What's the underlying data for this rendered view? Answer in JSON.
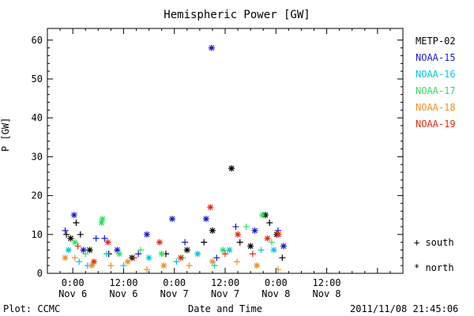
{
  "chart_data": {
    "type": "scatter",
    "title": "Hemispheric Power [GW]",
    "ylabel": "P [GW]",
    "xlabel": "Date and Time",
    "ylim": [
      0,
      63
    ],
    "xlim_hours": [
      -6,
      78
    ],
    "y_ticks": [
      0,
      10,
      20,
      30,
      40,
      50,
      60
    ],
    "x_ticks": [
      {
        "hour": 0,
        "time": "0:00",
        "date": "Nov 6"
      },
      {
        "hour": 12,
        "time": "12:00",
        "date": "Nov 6"
      },
      {
        "hour": 24,
        "time": "0:00",
        "date": "Nov 7"
      },
      {
        "hour": 36,
        "time": "12:00",
        "date": "Nov 7"
      },
      {
        "hour": 48,
        "time": "0:00",
        "date": "Nov 8"
      },
      {
        "hour": 60,
        "time": "12:00",
        "date": "Nov 8"
      }
    ],
    "grid": false,
    "legend_position": "right",
    "marker_key": {
      "south": "+ south",
      "north": "* north"
    },
    "series": [
      {
        "name": "METP-02",
        "color": "#000000",
        "points": [
          {
            "h": -1.5,
            "v": 10,
            "m": "+"
          },
          {
            "h": -0.5,
            "v": 9,
            "m": "*"
          },
          {
            "h": 0.8,
            "v": 13,
            "m": "+"
          },
          {
            "h": 1.8,
            "v": 10,
            "m": "+"
          },
          {
            "h": 4,
            "v": 6,
            "m": "*"
          },
          {
            "h": 8.5,
            "v": 5,
            "m": "+"
          },
          {
            "h": 14,
            "v": 4,
            "m": "*"
          },
          {
            "h": 22,
            "v": 5,
            "m": "+"
          },
          {
            "h": 27,
            "v": 6,
            "m": "*"
          },
          {
            "h": 31,
            "v": 8,
            "m": "+"
          },
          {
            "h": 33,
            "v": 11,
            "m": "*"
          },
          {
            "h": 37.5,
            "v": 27,
            "m": "*"
          },
          {
            "h": 39.5,
            "v": 8,
            "m": "+"
          },
          {
            "h": 42,
            "v": 7,
            "m": "*"
          },
          {
            "h": 45.5,
            "v": 15,
            "m": "*"
          },
          {
            "h": 46.5,
            "v": 13,
            "m": "+"
          },
          {
            "h": 48.2,
            "v": 10,
            "m": "*"
          },
          {
            "h": 49.5,
            "v": 4,
            "m": "+"
          }
        ]
      },
      {
        "name": "NOAA-15",
        "color": "#1a1ac8",
        "points": [
          {
            "h": -1.8,
            "v": 11,
            "m": "+"
          },
          {
            "h": 0.3,
            "v": 15,
            "m": "*"
          },
          {
            "h": 2.5,
            "v": 6,
            "m": "*"
          },
          {
            "h": 5.5,
            "v": 9,
            "m": "+"
          },
          {
            "h": 7.5,
            "v": 9,
            "m": "+"
          },
          {
            "h": 10.5,
            "v": 6,
            "m": "*"
          },
          {
            "h": 15.5,
            "v": 5,
            "m": "+"
          },
          {
            "h": 17.5,
            "v": 10,
            "m": "*"
          },
          {
            "h": 23.5,
            "v": 14,
            "m": "*"
          },
          {
            "h": 26.5,
            "v": 8,
            "m": "+"
          },
          {
            "h": 31.5,
            "v": 14,
            "m": "*"
          },
          {
            "h": 32.8,
            "v": 58,
            "m": "*"
          },
          {
            "h": 34,
            "v": 4,
            "m": "+"
          },
          {
            "h": 38.5,
            "v": 12,
            "m": "+"
          },
          {
            "h": 43,
            "v": 11,
            "m": "*"
          },
          {
            "h": 48.5,
            "v": 11,
            "m": "+"
          },
          {
            "h": 49.8,
            "v": 7,
            "m": "*"
          }
        ]
      },
      {
        "name": "NOAA-16",
        "color": "#00c8e0",
        "points": [
          {
            "h": -1,
            "v": 6,
            "m": "*"
          },
          {
            "h": 1.5,
            "v": 3,
            "m": "+"
          },
          {
            "h": 3.5,
            "v": 2,
            "m": "+"
          },
          {
            "h": 8,
            "v": 5,
            "m": "+"
          },
          {
            "h": 12,
            "v": 2,
            "m": "+"
          },
          {
            "h": 18,
            "v": 4,
            "m": "*"
          },
          {
            "h": 24.5,
            "v": 3,
            "m": "+"
          },
          {
            "h": 29.5,
            "v": 5,
            "m": "*"
          },
          {
            "h": 33.5,
            "v": 2,
            "m": "+"
          },
          {
            "h": 37,
            "v": 6,
            "m": "*"
          },
          {
            "h": 44.5,
            "v": 6,
            "m": "+"
          },
          {
            "h": 47.5,
            "v": 6,
            "m": "*"
          }
        ]
      },
      {
        "name": "NOAA-17",
        "color": "#2fe060",
        "points": [
          {
            "h": 0.5,
            "v": 8,
            "m": "*"
          },
          {
            "h": 3,
            "v": 5,
            "m": "+"
          },
          {
            "h": 6.8,
            "v": 13,
            "m": "*"
          },
          {
            "h": 7,
            "v": 14,
            "m": "*"
          },
          {
            "h": 11,
            "v": 5,
            "m": "*"
          },
          {
            "h": 16,
            "v": 6,
            "m": "+"
          },
          {
            "h": 21,
            "v": 5,
            "m": "*"
          },
          {
            "h": 26,
            "v": 4,
            "m": "+"
          },
          {
            "h": 35.5,
            "v": 6,
            "m": "*"
          },
          {
            "h": 41,
            "v": 12,
            "m": "+"
          },
          {
            "h": 44.8,
            "v": 15,
            "m": "*"
          },
          {
            "h": 47,
            "v": 8,
            "m": "+"
          }
        ]
      },
      {
        "name": "NOAA-18",
        "color": "#f0901e",
        "points": [
          {
            "h": -1.8,
            "v": 4,
            "m": "*"
          },
          {
            "h": 0.5,
            "v": 4,
            "m": "+"
          },
          {
            "h": 4.5,
            "v": 2,
            "m": "*"
          },
          {
            "h": 9,
            "v": 2,
            "m": "+"
          },
          {
            "h": 13,
            "v": 3,
            "m": "*"
          },
          {
            "h": 17.5,
            "v": 1,
            "m": "+"
          },
          {
            "h": 21.5,
            "v": 2,
            "m": "*"
          },
          {
            "h": 27.5,
            "v": 2,
            "m": "+"
          },
          {
            "h": 33,
            "v": 3,
            "m": "*"
          },
          {
            "h": 38.8,
            "v": 3,
            "m": "+"
          },
          {
            "h": 43.5,
            "v": 2,
            "m": "*"
          },
          {
            "h": 48.5,
            "v": 1,
            "m": "+"
          }
        ]
      },
      {
        "name": "NOAA-19",
        "color": "#e82810",
        "points": [
          {
            "h": 1.2,
            "v": 7,
            "m": "+"
          },
          {
            "h": 5,
            "v": 3,
            "m": "*"
          },
          {
            "h": 8.3,
            "v": 8,
            "m": "*"
          },
          {
            "h": 14.5,
            "v": 4,
            "m": "+"
          },
          {
            "h": 20.5,
            "v": 8,
            "m": "*"
          },
          {
            "h": 25.5,
            "v": 4,
            "m": "*"
          },
          {
            "h": 32.5,
            "v": 17,
            "m": "*"
          },
          {
            "h": 36,
            "v": 5,
            "m": "+"
          },
          {
            "h": 39,
            "v": 10,
            "m": "*"
          },
          {
            "h": 42.5,
            "v": 5,
            "m": "+"
          },
          {
            "h": 46,
            "v": 9,
            "m": "*"
          },
          {
            "h": 48.6,
            "v": 10,
            "m": "*"
          }
        ]
      }
    ]
  },
  "footer": {
    "left": "Plot: CCMC",
    "right": "2011/11/08 21:45:06"
  }
}
